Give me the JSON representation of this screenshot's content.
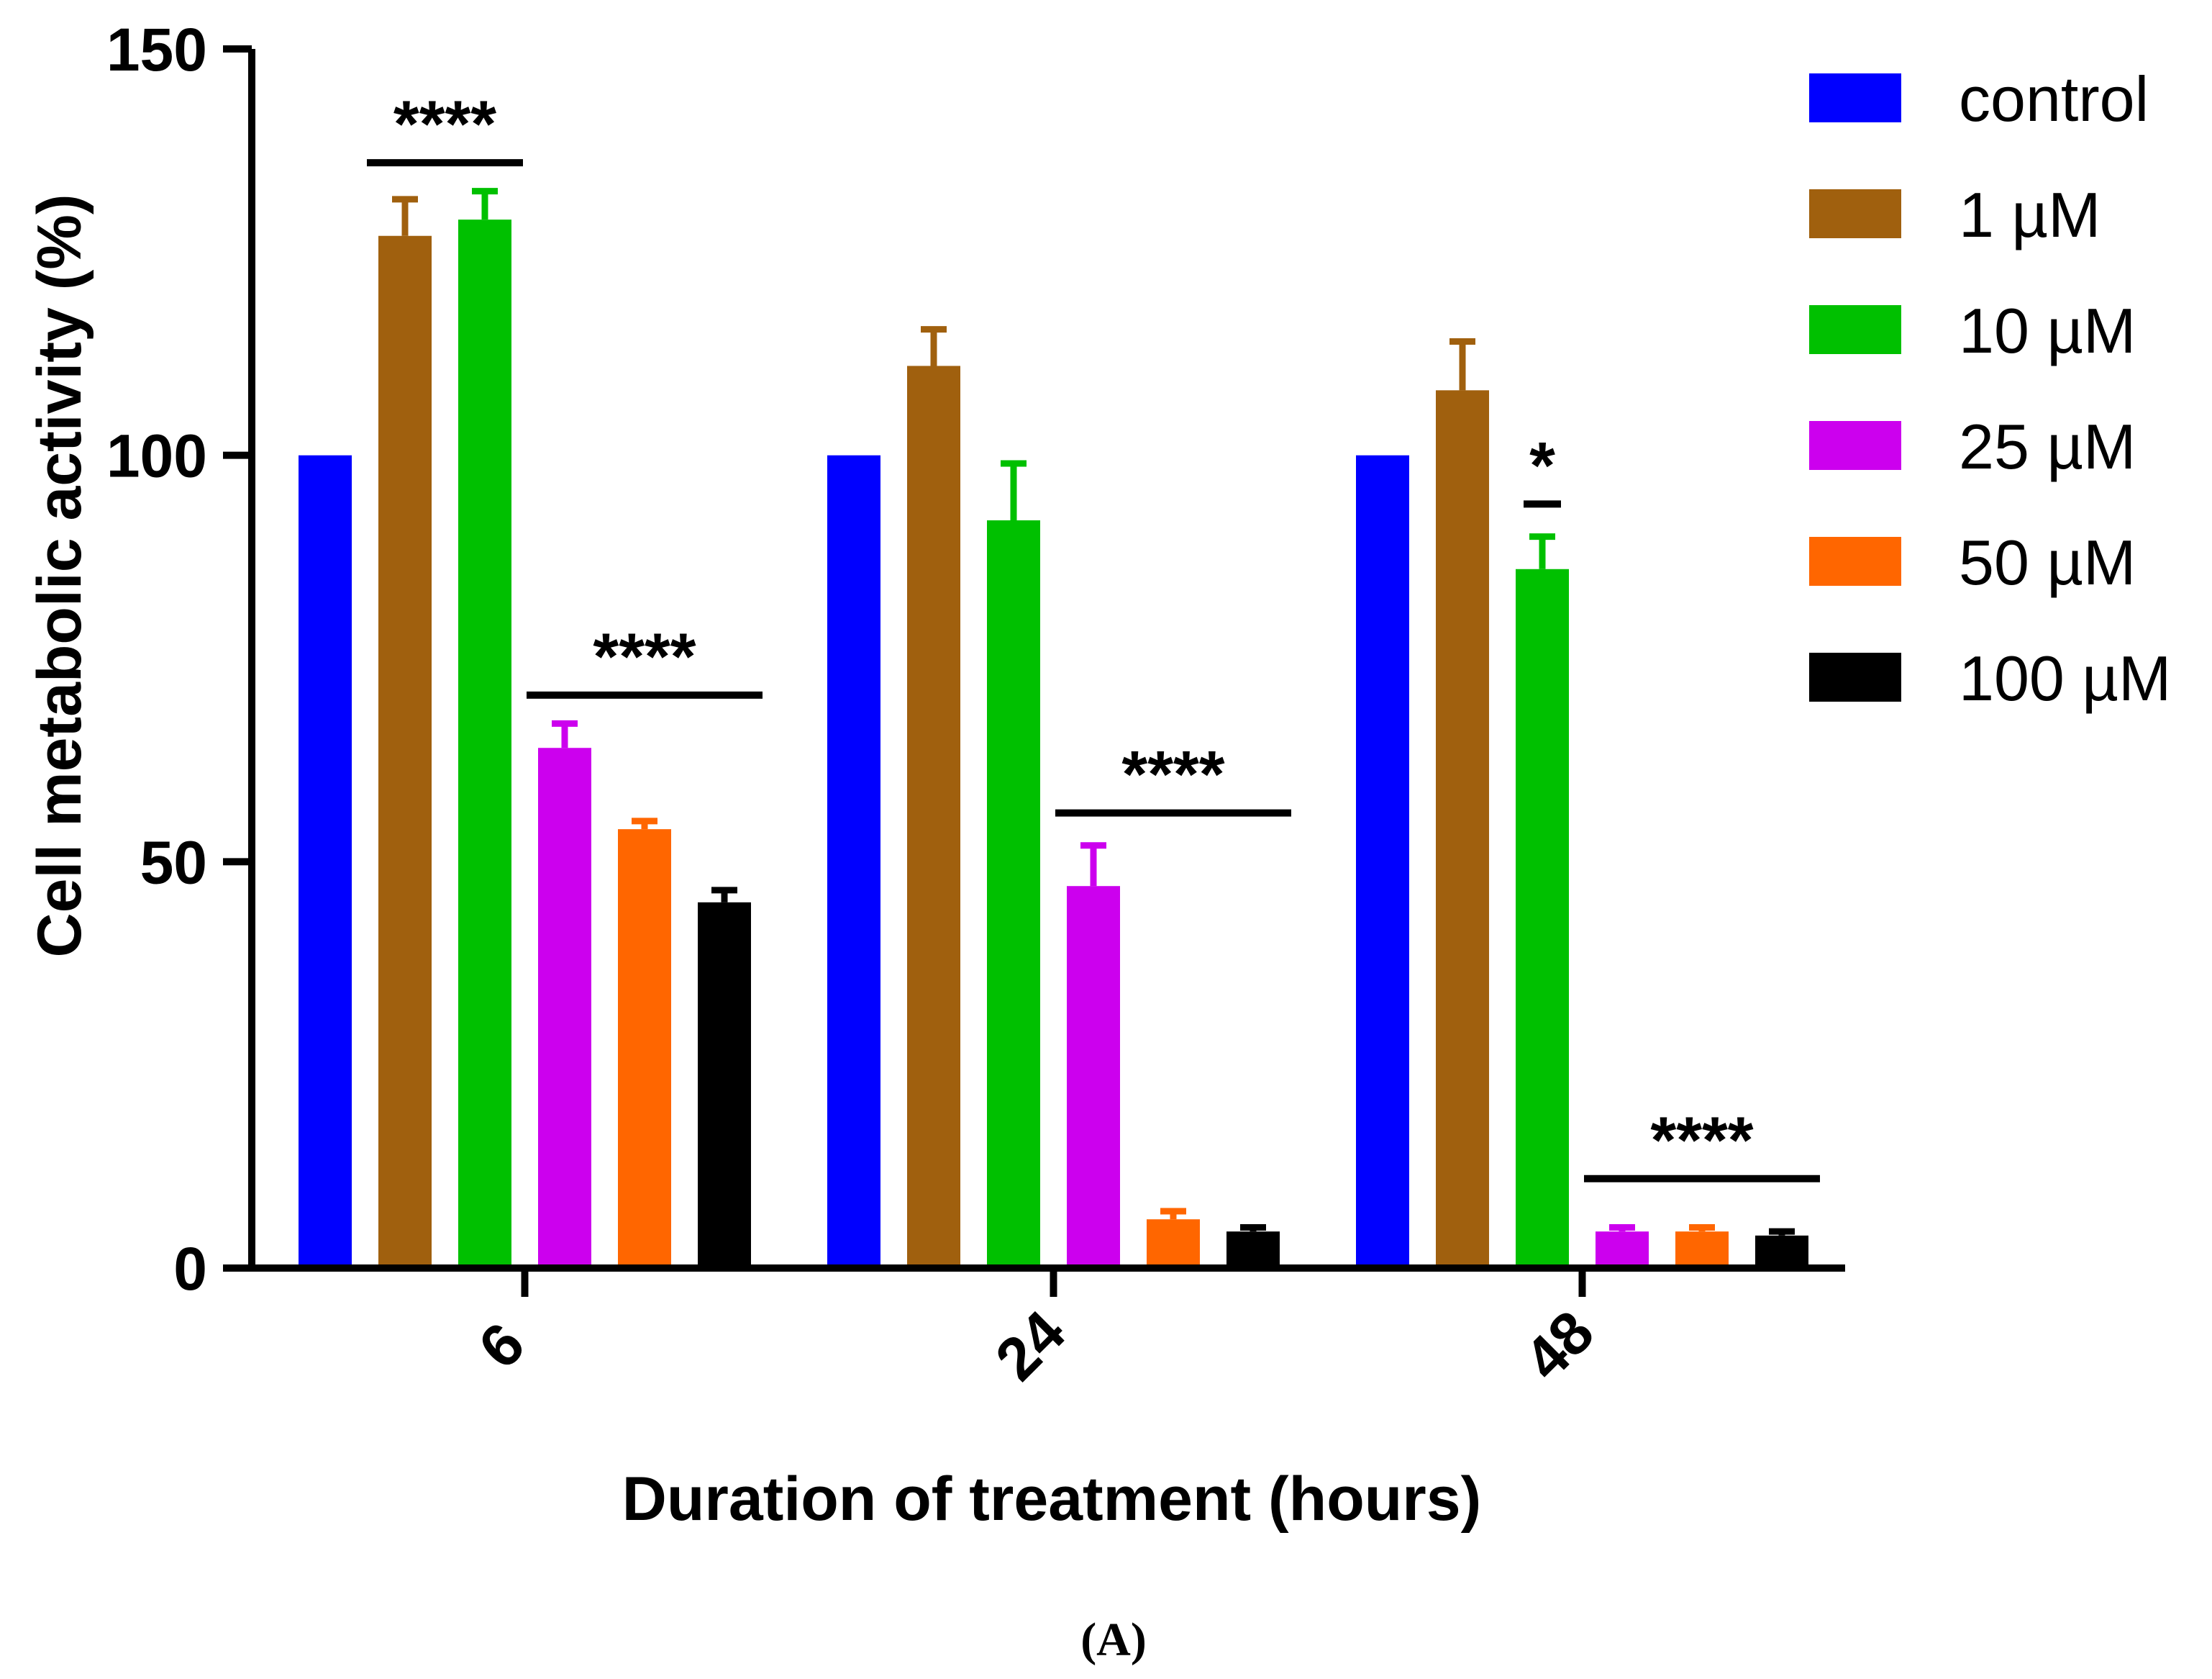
{
  "chart_data": {
    "type": "bar",
    "title": "",
    "xlabel": "Duration of treatment (hours)",
    "ylabel": "Cell metabolic activity (%)",
    "ylim": [
      0,
      150
    ],
    "yticks": [
      "0",
      "50",
      "100",
      "150"
    ],
    "categories": [
      "6",
      "24",
      "48"
    ],
    "legend_position": "top-right",
    "series": [
      {
        "name": "control",
        "color": "#0000ff",
        "values": [
          100,
          100,
          100
        ],
        "errors": [
          0,
          0,
          0
        ]
      },
      {
        "name": "1 µM",
        "color": "#a0600e",
        "values": [
          127,
          111,
          108
        ],
        "errors": [
          4.5,
          4.5,
          6
        ]
      },
      {
        "name": "10 µM",
        "color": "#00c000",
        "values": [
          129,
          92,
          86
        ],
        "errors": [
          3.5,
          7,
          4
        ]
      },
      {
        "name": "25 µM",
        "color": "#cc00ee",
        "values": [
          64,
          47,
          4.5
        ],
        "errors": [
          3,
          5,
          0.5
        ]
      },
      {
        "name": "50 µM",
        "color": "#ff6600",
        "values": [
          54,
          6,
          4.5
        ],
        "errors": [
          1,
          1,
          0.5
        ]
      },
      {
        "name": "100 µM",
        "color": "#000000",
        "values": [
          45,
          4.5,
          4
        ],
        "errors": [
          1.5,
          0.5,
          0.5
        ]
      }
    ],
    "annotations": [
      {
        "text": "****",
        "category": "6",
        "from_series": 1,
        "to_series": 2,
        "y": 136
      },
      {
        "text": "****",
        "category": "6",
        "from_series": 3,
        "to_series": 5,
        "y": 70.5
      },
      {
        "text": "****",
        "category": "24",
        "from_series": 3,
        "to_series": 5,
        "y": 56
      },
      {
        "text": "*",
        "category": "48",
        "from_series": 2,
        "to_series": 2,
        "y": 94
      },
      {
        "text": "****",
        "category": "48",
        "from_series": 3,
        "to_series": 5,
        "y": 11
      }
    ]
  },
  "figure": {
    "panel_label": "(A)"
  }
}
